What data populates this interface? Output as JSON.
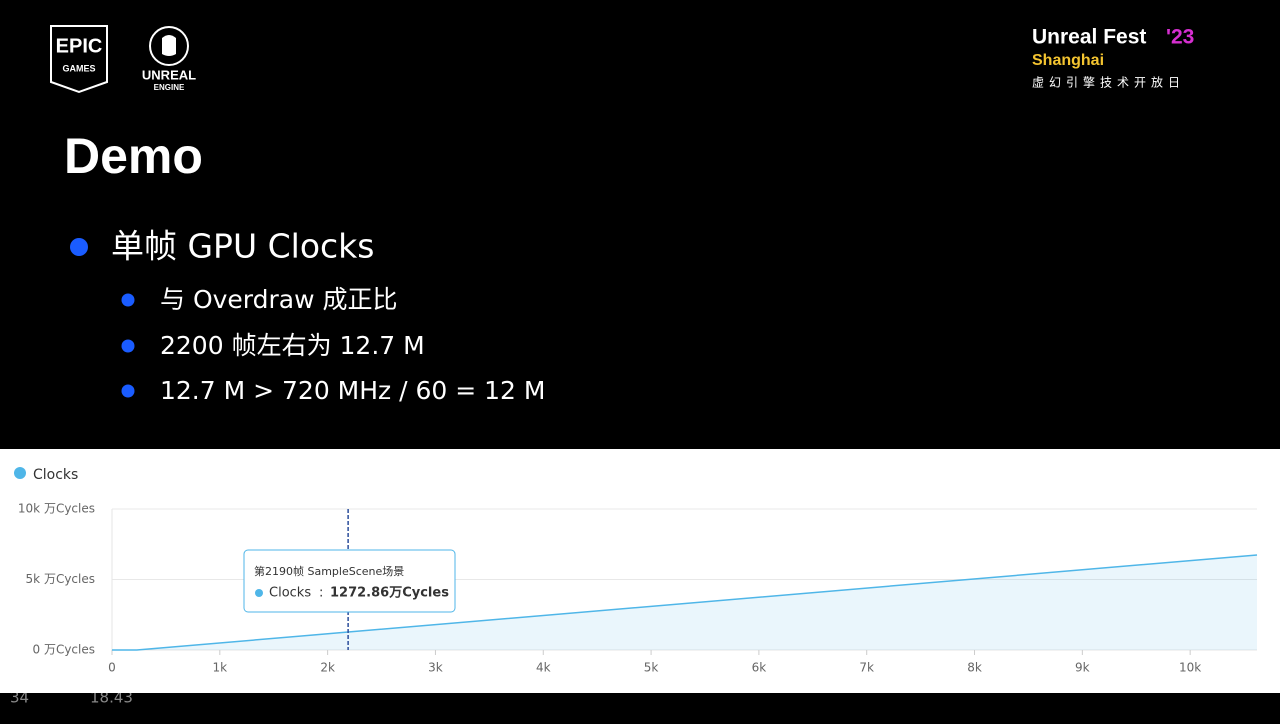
{
  "slide": {
    "logo_epic_top": "EPIC",
    "logo_epic_bottom": "GAMES",
    "logo_unreal_top": "UNREAL",
    "logo_unreal_bottom": "ENGINE",
    "event_name": "Unreal Fest",
    "event_year": "'23",
    "event_city": "Shanghai",
    "event_subtitle": "虚幻引擎技术开放日",
    "title": "Demo",
    "bullet": "单帧 GPU Clocks",
    "sub_bullets": [
      "与 Overdraw 成正比",
      "2200 帧左右为 12.7 M",
      "12.7 M > 720 MHz / 60 = 12 M"
    ],
    "page_number": "34",
    "footer_time": "18.43"
  },
  "chart_data": {
    "type": "line",
    "x": [
      0,
      230,
      2190,
      10620
    ],
    "series": [
      {
        "name": "Clocks",
        "color": "#4fb6e8",
        "values": [
          0,
          0,
          1272.86,
          6740
        ]
      }
    ],
    "xlim": [
      0,
      10620
    ],
    "ylim": [
      0,
      10000
    ],
    "xticks": [
      0,
      {
        "value": 1000,
        "label": "1k"
      },
      {
        "value": 2000,
        "label": "2k"
      },
      {
        "value": 3000,
        "label": "3k"
      },
      {
        "value": 4000,
        "label": "4k"
      },
      {
        "value": 5000,
        "label": "5k"
      },
      {
        "value": 6000,
        "label": "6k"
      },
      {
        "value": 7000,
        "label": "7k"
      },
      {
        "value": 8000,
        "label": "8k"
      },
      {
        "value": 9000,
        "label": "9k"
      },
      {
        "value": 10000,
        "label": "10k"
      }
    ],
    "yticks": [
      {
        "value": 0,
        "label": "0 万Cycles"
      },
      {
        "value": 5000,
        "label": "5k 万Cycles"
      },
      {
        "value": 10000,
        "label": "10k 万Cycles"
      }
    ],
    "grid": true,
    "tooltip": {
      "x": 2190,
      "title": "第2190帧 SampleScene场景",
      "series": "Clocks",
      "value_label": "1272.86万Cycles"
    }
  }
}
